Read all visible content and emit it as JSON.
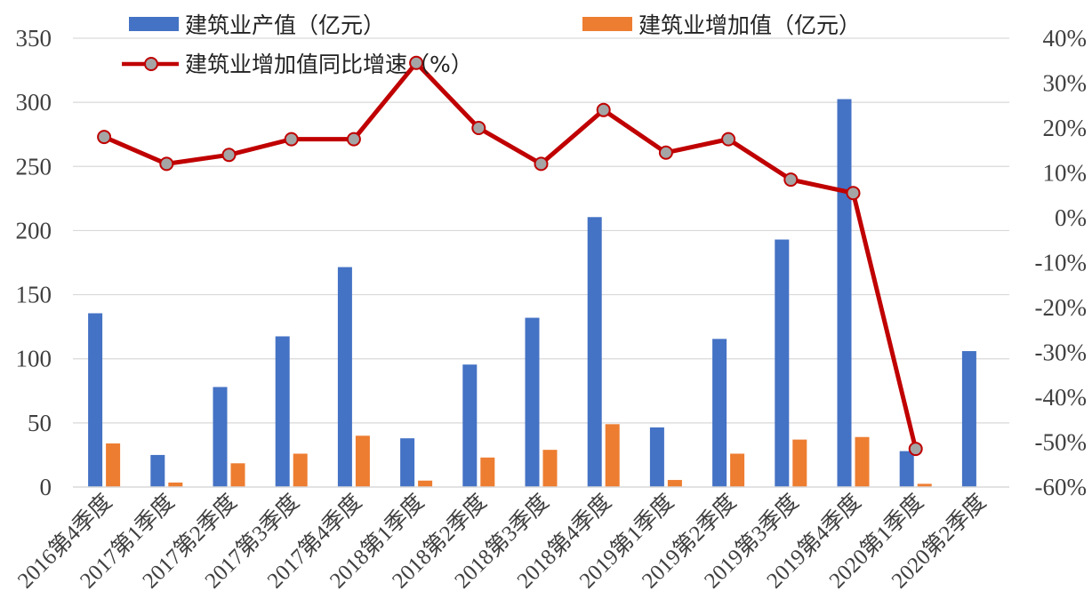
{
  "chart_data": {
    "type": "bar+line",
    "categories": [
      "2016第4季度",
      "2017第1季度",
      "2017第2季度",
      "2017第3季度",
      "2017第4季度",
      "2018第1季度",
      "2018第2季度",
      "2018第3季度",
      "2018第4季度",
      "2019第1季度",
      "2019第2季度",
      "2019第3季度",
      "2019第4季度",
      "2020第1季度",
      "2020第2季度"
    ],
    "series": [
      {
        "name": "建筑业产值（亿元）",
        "type": "bar",
        "axis": "left",
        "color": "#4472c4",
        "values": [
          135.5,
          25,
          78,
          117.5,
          171.5,
          38,
          95.5,
          132,
          210.5,
          46.5,
          115.5,
          193,
          302.5,
          28,
          106
        ]
      },
      {
        "name": "建筑业增加值（亿元）",
        "type": "bar",
        "axis": "left",
        "color": "#ed7d31",
        "values": [
          34,
          3.5,
          18.5,
          26,
          40,
          5,
          23,
          29,
          49,
          5.5,
          26,
          37,
          39,
          2.5,
          null
        ]
      },
      {
        "name": "建筑业增加值同比增速（%）",
        "type": "line",
        "axis": "right",
        "color": "#c00000",
        "marker_fill": "#a5a5a5",
        "values": [
          18,
          12,
          14,
          17.5,
          17.5,
          34.5,
          20,
          12,
          24,
          14.5,
          17.5,
          8.5,
          5.5,
          -51.5,
          null
        ]
      }
    ],
    "y_left": {
      "ticks": [
        "0",
        "50",
        "100",
        "150",
        "200",
        "250",
        "300",
        "350"
      ],
      "ylim": [
        0,
        350
      ]
    },
    "y_right": {
      "ticks": [
        "-60%",
        "-50%",
        "-40%",
        "-30%",
        "-20%",
        "-10%",
        "0%",
        "10%",
        "20%",
        "30%",
        "40%"
      ],
      "ylim": [
        -60,
        40
      ]
    },
    "grid": true,
    "legend_position": "top"
  }
}
